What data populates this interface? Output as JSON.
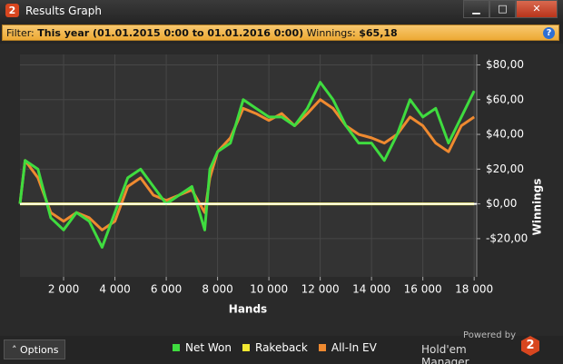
{
  "window": {
    "title": "Results Graph",
    "logo": "2",
    "minimize": "▁",
    "maximize": "□",
    "close": "✕",
    "filter_label": "Filter:",
    "filter_period": "This year (01.01.2015 0:00 to 01.01.2016 0:00)",
    "winnings_label": "Winnings:",
    "winnings_value": "$65,18",
    "help": "?",
    "options": "˄   Options",
    "powered_by": "Powered by",
    "brand": "Hold'em Manager",
    "brand_logo": "2"
  },
  "chart_data": {
    "type": "line",
    "xlabel": "Hands",
    "ylabel": "Winnings",
    "x": [
      300,
      500,
      1000,
      1500,
      2000,
      2500,
      3000,
      3500,
      4000,
      4500,
      5000,
      5500,
      6000,
      6500,
      7000,
      7500,
      7700,
      8000,
      8500,
      9000,
      9500,
      10000,
      10500,
      11000,
      11500,
      12000,
      12500,
      13000,
      13500,
      14000,
      14500,
      15000,
      15500,
      16000,
      16500,
      17000,
      17500,
      18000
    ],
    "series": [
      {
        "name": "Net Won",
        "color": "#3fdc3f",
        "values": [
          0,
          25,
          20,
          -8,
          -15,
          -5,
          -10,
          -25,
          -5,
          15,
          20,
          10,
          0,
          5,
          10,
          -15,
          20,
          30,
          35,
          60,
          55,
          50,
          50,
          45,
          55,
          70,
          60,
          45,
          35,
          35,
          25,
          40,
          60,
          50,
          55,
          35,
          50,
          65
        ]
      },
      {
        "name": "Rakeback",
        "color": "#f2e832",
        "values": [
          0,
          0,
          0,
          0,
          0,
          0,
          0,
          0,
          0,
          0,
          0,
          0,
          0,
          0,
          0,
          0,
          0,
          0,
          0,
          0,
          0,
          0,
          0,
          0,
          0,
          0,
          0,
          0,
          0,
          0,
          0,
          0,
          0,
          0,
          0,
          0,
          0,
          0
        ]
      },
      {
        "name": "All-In EV",
        "color": "#ef8a30",
        "values": [
          0,
          25,
          15,
          -5,
          -10,
          -5,
          -8,
          -15,
          -10,
          10,
          15,
          5,
          2,
          5,
          8,
          -5,
          15,
          30,
          38,
          55,
          52,
          48,
          52,
          45,
          52,
          60,
          55,
          45,
          40,
          38,
          35,
          40,
          50,
          45,
          35,
          30,
          45,
          50
        ]
      }
    ],
    "xlim": [
      300,
      18100
    ],
    "ylim": [
      -42,
      86
    ],
    "xticks": [
      {
        "value": 2000,
        "label": "2 000"
      },
      {
        "value": 4000,
        "label": "4 000"
      },
      {
        "value": 6000,
        "label": "6 000"
      },
      {
        "value": 8000,
        "label": "8 000"
      },
      {
        "value": 10000,
        "label": "10 000"
      },
      {
        "value": 12000,
        "label": "12 000"
      },
      {
        "value": 14000,
        "label": "14 000"
      },
      {
        "value": 16000,
        "label": "16 000"
      },
      {
        "value": 18000,
        "label": "18 000"
      }
    ],
    "yticks": [
      {
        "value": -20,
        "label": "-$20,00"
      },
      {
        "value": 0,
        "label": "$0,00"
      },
      {
        "value": 20,
        "label": "$20,00"
      },
      {
        "value": 40,
        "label": "$40,00"
      },
      {
        "value": 60,
        "label": "$60,00"
      },
      {
        "value": 80,
        "label": "$80,00"
      }
    ],
    "grid": true,
    "legend": "bottom"
  }
}
